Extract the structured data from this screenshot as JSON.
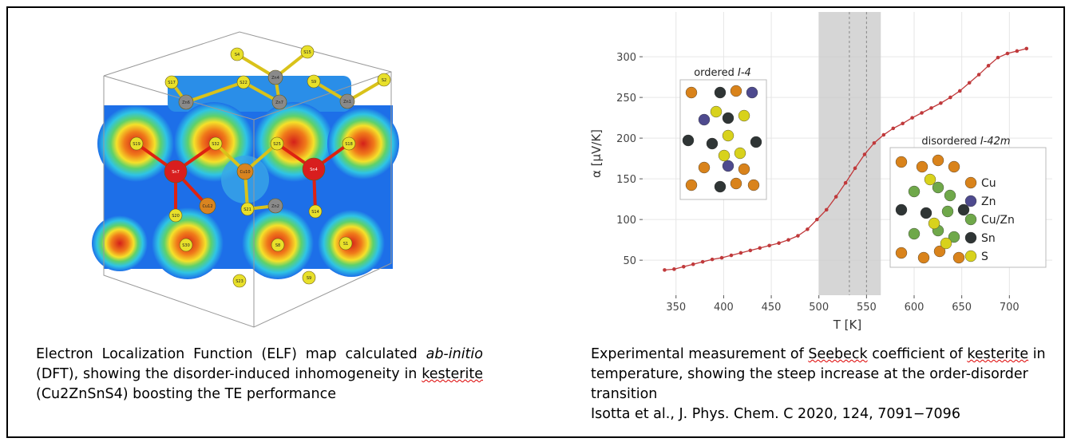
{
  "left_figure": {
    "atoms": [
      "S4",
      "S15",
      "S17",
      "S22",
      "Zn4",
      "S9",
      "S2",
      "Zn6",
      "Zn7",
      "Zn1",
      "S19",
      "S32",
      "S25",
      "S18",
      "Sn7",
      "Cu10",
      "Sn4",
      "Cu12",
      "Zn2",
      "S20",
      "S21",
      "S14",
      "S30",
      "S8",
      "S1",
      "S23",
      "S9"
    ],
    "caption": [
      "Electron Localization Function (ELF) map calculated ",
      "ab-initio",
      " (DFT), showing the disorder-induced inhomogeneity in ",
      "kesterite",
      " (Cu2ZnSnS4) boosting the TE performance"
    ]
  },
  "right_caption": {
    "text": [
      "Experimental measurement of ",
      "Seebeck",
      " coefficient of ",
      "kesterite",
      " in temperature, showing the steep increase at the order-disorder transition"
    ],
    "reference": "Isotta et al., J. Phys. Chem. C 2020, 124, 7091−7096"
  },
  "chart_data": {
    "type": "line",
    "x_label": "T [K]",
    "y_label": "α [μV/K]",
    "x": [
      338,
      348,
      358,
      368,
      378,
      388,
      398,
      408,
      418,
      428,
      438,
      448,
      458,
      468,
      478,
      488,
      498,
      508,
      518,
      528,
      538,
      548,
      558,
      568,
      578,
      588,
      598,
      608,
      618,
      628,
      638,
      648,
      658,
      668,
      678,
      688,
      698,
      708,
      718
    ],
    "series": [
      {
        "color": "#c0393b",
        "values": [
          38,
          39,
          42,
          45,
          48,
          51,
          53,
          56,
          59,
          62,
          65,
          68,
          71,
          75,
          80,
          88,
          100,
          112,
          128,
          145,
          163,
          180,
          194,
          204,
          212,
          218,
          225,
          231,
          237,
          243,
          250,
          258,
          268,
          278,
          289,
          299,
          304,
          307,
          310
        ]
      }
    ],
    "xlim": [
      315,
      745
    ],
    "ylim": [
      7,
      355
    ],
    "xticks": [
      350,
      400,
      450,
      500,
      550,
      600,
      650,
      700
    ],
    "yticks": [
      50,
      100,
      150,
      200,
      250,
      300
    ],
    "grid": true,
    "shaded_band": [
      500,
      565
    ],
    "reference_lines": [
      532,
      550
    ],
    "insets": [
      {
        "prefix": "ordered",
        "symbol": "I-4"
      },
      {
        "prefix": "disordered",
        "symbol": "I-42m"
      }
    ],
    "atom_legend": [
      {
        "name": "Cu",
        "color": "#d9831b"
      },
      {
        "name": "Zn",
        "color": "#4e4a8e"
      },
      {
        "name": "Cu/Zn",
        "color": "#6fa84a"
      },
      {
        "name": "Sn",
        "color": "#2f3535"
      },
      {
        "name": "S",
        "color": "#d8d21c"
      }
    ]
  }
}
